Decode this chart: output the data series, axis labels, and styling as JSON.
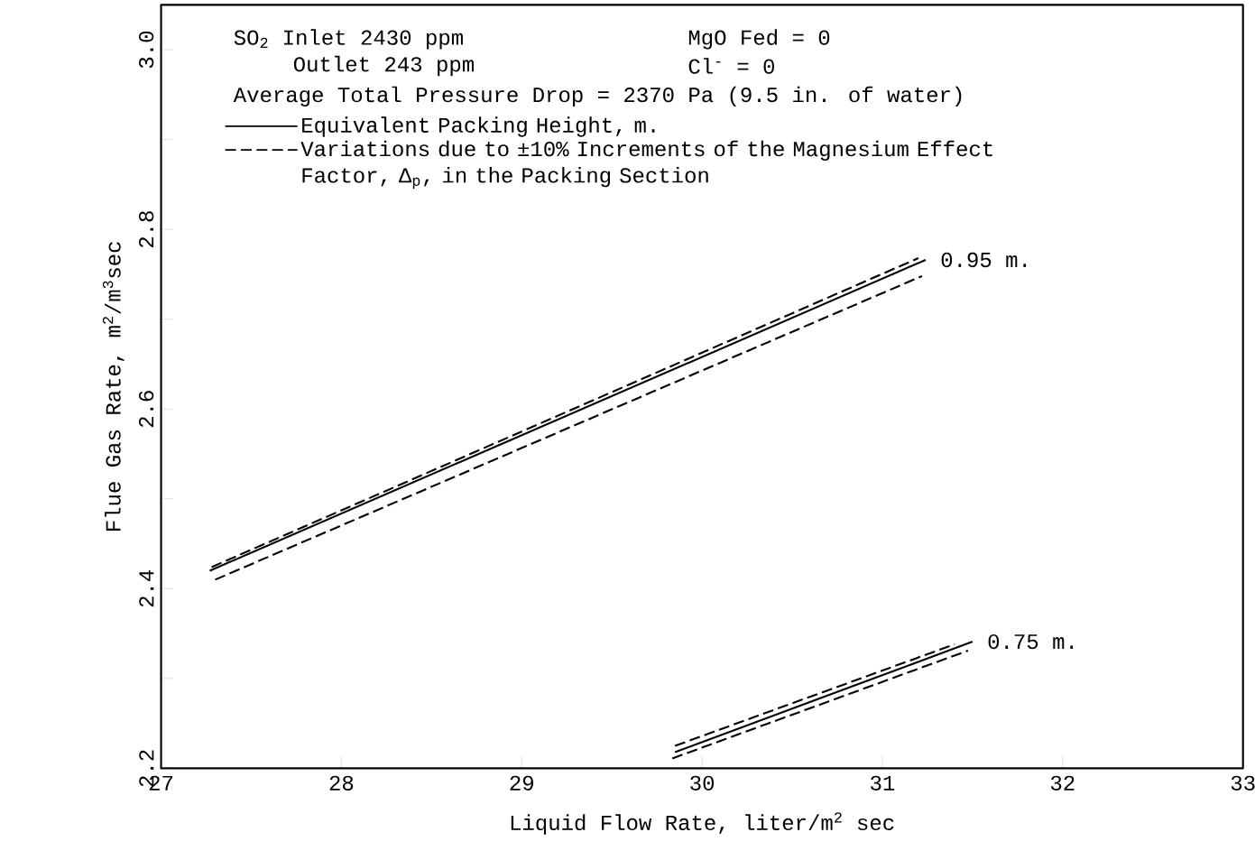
{
  "chart_data": {
    "type": "line",
    "xlabel": "Liquid Flow Rate, liter/m$^{2}$ sec",
    "ylabel": "Flue Gas Rate, m$^{2}$/m$^{3}$sec",
    "xlim": [
      27,
      33
    ],
    "ylim": [
      2.2,
      3.05
    ],
    "xticks": [
      27,
      28,
      29,
      30,
      31,
      32,
      33
    ],
    "yticks": [
      2.2,
      {
        "value": 2.3,
        "label": null
      },
      2.4,
      {
        "value": 2.5,
        "label": null
      },
      2.6,
      {
        "value": 2.7,
        "label": null
      },
      2.8,
      {
        "value": 2.9,
        "label": null
      },
      {
        "value": 3.0,
        "label": "3.0"
      }
    ],
    "legend": "top left",
    "grid": false,
    "marker": "none",
    "series": [
      {
        "name": "Equivalent Packing Height, m.",
        "color": "#000000",
        "line_style": "solid",
        "x": [
          27.27,
          31.24
        ],
        "values": [
          2.42,
          2.766
        ]
      },
      {
        "name": "Variations due to ±10% Increments of the Magnesium Effect Factor, Δ$_{p}$, in the Packing Section",
        "color": "#000000",
        "line_style": "dashed",
        "x": [
          27.28,
          31.2
        ],
        "values": [
          2.424,
          2.768
        ]
      },
      {
        "color": "#000000",
        "line_style": "dashed",
        "x": [
          27.3,
          31.22
        ],
        "values": [
          2.41,
          2.748
        ]
      },
      {
        "color": "#000000",
        "line_style": "solid",
        "x": [
          29.85,
          31.5
        ],
        "values": [
          2.218,
          2.341
        ]
      },
      {
        "color": "#000000",
        "line_style": "dashed",
        "x": [
          29.85,
          31.4
        ],
        "values": [
          2.225,
          2.338
        ]
      },
      {
        "color": "#000000",
        "line_style": "dashed",
        "x": [
          29.835,
          31.475
        ],
        "values": [
          2.211,
          2.331
        ]
      }
    ],
    "annotations": [
      {
        "text": "0.95 m.",
        "x": 31.24,
        "y": 2.766
      },
      {
        "text": "0.75 m.",
        "x": 31.5,
        "y": 2.341
      },
      "SO$_{2}$ Inlet  2430 ppm",
      "Outlet  243 ppm",
      "MgO Fed = 0",
      "Cl$^{-}$      = 0",
      "Average Total Pressure Drop = 2370 Pa (9.5 in. of water)"
    ]
  }
}
